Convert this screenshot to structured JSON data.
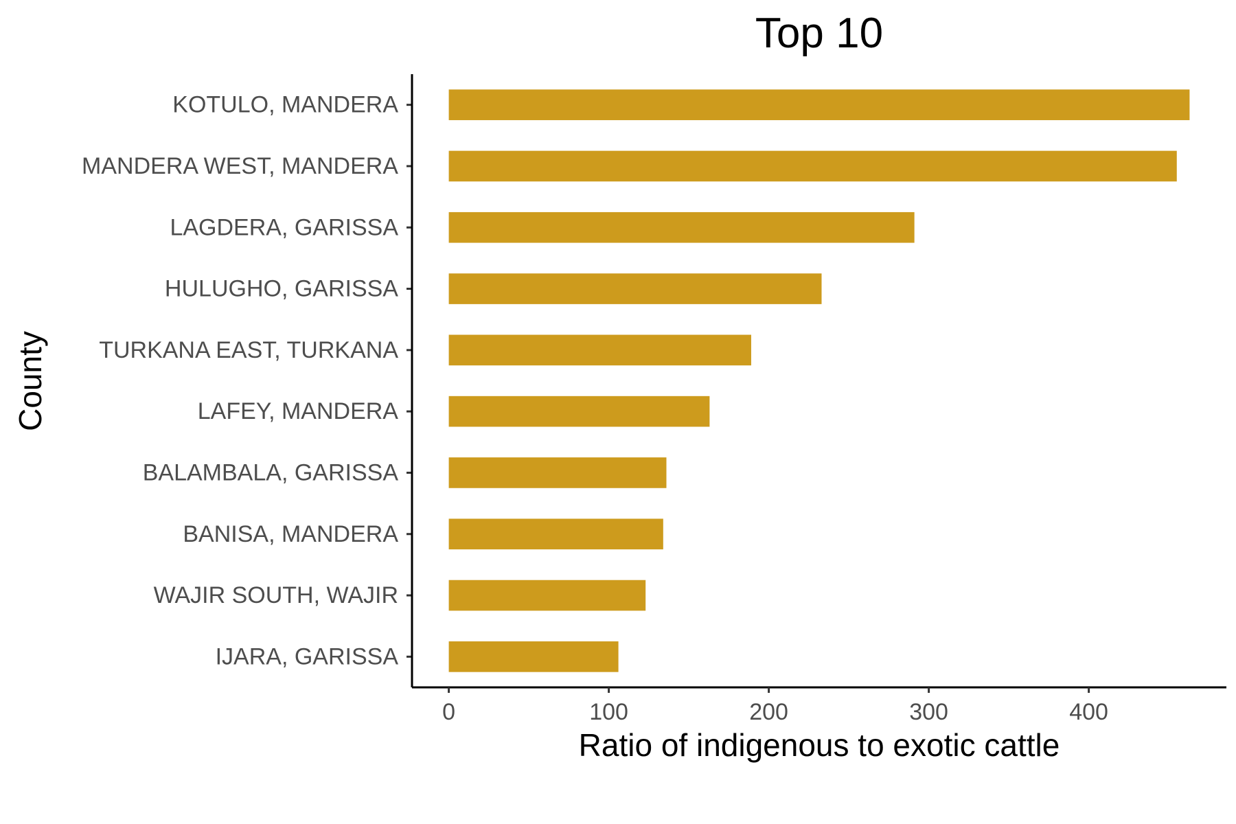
{
  "chart_data": {
    "type": "bar",
    "orientation": "horizontal",
    "title": "Top 10",
    "xlabel": "Ratio of indigenous to exotic cattle",
    "ylabel": "County",
    "categories": [
      "KOTULO, MANDERA",
      "MANDERA WEST, MANDERA",
      "LAGDERA, GARISSA",
      "HULUGHO, GARISSA",
      "TURKANA EAST, TURKANA",
      "LAFEY, MANDERA",
      "BALAMBALA, GARISSA",
      "BANISA, MANDERA",
      "WAJIR SOUTH, WAJIR",
      "IJARA, GARISSA"
    ],
    "values": [
      463,
      455,
      291,
      233,
      189,
      163,
      136,
      134,
      123,
      106
    ],
    "xticks": [
      0,
      100,
      200,
      300,
      400
    ],
    "xlim": [
      -23,
      486
    ],
    "grid": false,
    "legend": "none",
    "bar_color": "#cd9b1d"
  }
}
